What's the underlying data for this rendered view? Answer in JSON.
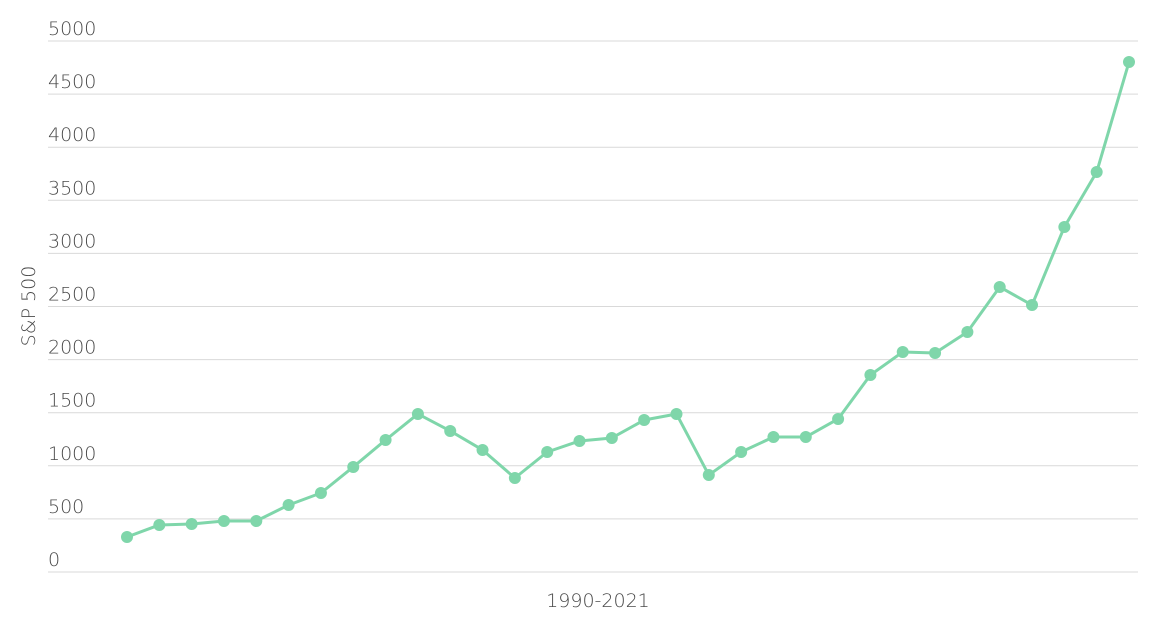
{
  "chart_data": {
    "type": "line",
    "x_label": "1990-2021",
    "y_label": "S&P 500",
    "categories": [
      null,
      null,
      null,
      null,
      null,
      null,
      null,
      null,
      null,
      null,
      null,
      null,
      null,
      null,
      null,
      null,
      null,
      null,
      null,
      null,
      null,
      null,
      null,
      null,
      null,
      null,
      null,
      null,
      null,
      null,
      null,
      null
    ],
    "series": [
      {
        "name": null,
        "color": "#7fd6aa",
        "values": [
          330,
          443,
          452,
          480,
          480,
          631,
          744,
          989,
          1243,
          1488,
          1328,
          1149,
          885,
          1130,
          1234,
          1262,
          1431,
          1488,
          913,
          1130,
          1271,
          1271,
          1441,
          1855,
          2072,
          2062,
          2260,
          2684,
          2514,
          3249,
          3766,
          4802
        ]
      }
    ],
    "ylim": [
      0,
      5000
    ],
    "yticks": [
      0,
      500,
      1000,
      1500,
      2000,
      2500,
      3000,
      3500,
      4000,
      4500,
      5000
    ],
    "grid": true
  }
}
